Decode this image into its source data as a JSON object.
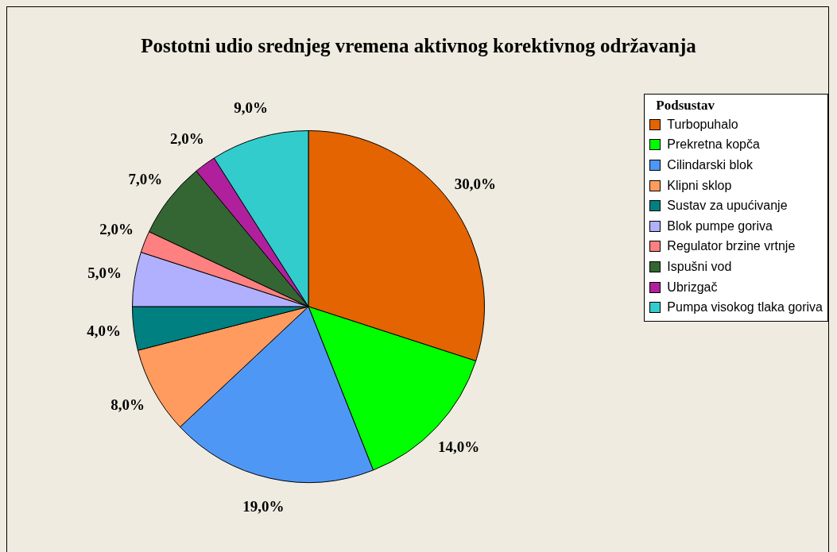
{
  "chart_data": {
    "type": "pie",
    "title": "Postotni udio srednjeg vremena aktivnog korektivnog održavanja",
    "legend_title": "Podsustav",
    "legend": "top right",
    "categories": [
      "Turbopuhalo",
      "Prekretna kopča",
      "Cilindarski blok",
      "Klipni sklop",
      "Sustav za upućivanje",
      "Blok pumpe goriva",
      "Regulator brzine vrtnje",
      "Ispušni vod",
      "Ubrizgač",
      "Pumpa visokog tlaka goriva"
    ],
    "values": [
      30,
      14,
      19,
      8,
      4,
      5,
      2,
      7,
      2,
      9
    ],
    "value_labels": [
      "30,0%",
      "14,0%",
      "19,0%",
      "8,0%",
      "4,0%",
      "5,0%",
      "2,0%",
      "7,0%",
      "2,0%",
      "9,0%"
    ],
    "colors": [
      "#e36400",
      "#00ff00",
      "#4f97f5",
      "#ff9b5e",
      "#008080",
      "#b0b0ff",
      "#ff8080",
      "#336633",
      "#b0209c",
      "#33cccc"
    ]
  }
}
